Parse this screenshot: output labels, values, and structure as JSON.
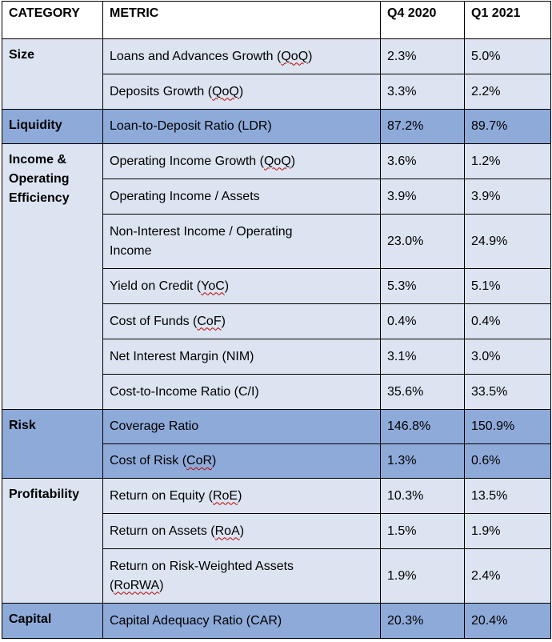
{
  "headers": {
    "category": "CATEGORY",
    "metric": "METRIC",
    "q4": "Q4 2020",
    "q1": "Q1 2021"
  },
  "categories": {
    "size": "Size",
    "liquidity": "Liquidity",
    "income_line1": "Income &",
    "income_line2": "Operating",
    "income_line3": "Efficiency",
    "risk": "Risk",
    "profitability": "Profitability",
    "capital": "Capital"
  },
  "rows": [
    {
      "metric_pre": "Loans and Advances Growth (",
      "metric_abbr": "QoQ",
      "metric_post": ")",
      "q4": "2.3%",
      "q1": "5.0%"
    },
    {
      "metric_pre": "Deposits Growth (",
      "metric_abbr": "QoQ",
      "metric_post": ")",
      "q4": "3.3%",
      "q1": "2.2%"
    },
    {
      "metric": "Loan-to-Deposit Ratio (LDR)",
      "q4": "87.2%",
      "q1": "89.7%"
    },
    {
      "metric_pre": "Operating Income Growth (",
      "metric_abbr": "QoQ",
      "metric_post": ")",
      "q4": "3.6%",
      "q1": "1.2%"
    },
    {
      "metric": "Operating Income / Assets",
      "q4": "3.9%",
      "q1": "3.9%"
    },
    {
      "metric_line1": "Non-Interest Income / Operating",
      "metric_line2": "Income",
      "q4": "23.0%",
      "q1": "24.9%"
    },
    {
      "metric_pre": "Yield on Credit (",
      "metric_abbr": "YoC",
      "metric_post": ")",
      "q4": "5.3%",
      "q1": "5.1%"
    },
    {
      "metric_pre": "Cost of Funds (",
      "metric_abbr": "CoF",
      "metric_post": ")",
      "q4": "0.4%",
      "q1": "0.4%"
    },
    {
      "metric": "Net Interest Margin (NIM)",
      "q4": "3.1%",
      "q1": "3.0%"
    },
    {
      "metric": "Cost-to-Income Ratio (C/I)",
      "q4": "35.6%",
      "q1": "33.5%"
    },
    {
      "metric": "Coverage Ratio",
      "q4": "146.8%",
      "q1": "150.9%"
    },
    {
      "metric_pre": "Cost of Risk (",
      "metric_abbr": "CoR",
      "metric_post": ")",
      "q4": "1.3%",
      "q1": "0.6%"
    },
    {
      "metric_pre": "Return on Equity (",
      "metric_abbr": "RoE",
      "metric_post": ")",
      "q4": "10.3%",
      "q1": "13.5%"
    },
    {
      "metric_pre": "Return on Assets (",
      "metric_abbr": "RoA",
      "metric_post": ")",
      "q4": "1.5%",
      "q1": "1.9%"
    },
    {
      "metric_line1": "Return on Risk-Weighted Assets",
      "metric_line2_pre": "(",
      "metric_line2_abbr": "RoRWA",
      "metric_line2_post": ")",
      "q4": "1.9%",
      "q1": "2.4%"
    },
    {
      "metric": "Capital Adequacy Ratio (CAR)",
      "q4": "20.3%",
      "q1": "20.4%"
    }
  ],
  "colors": {
    "light_band": "#dce4f1",
    "dark_band": "#8eaad9",
    "spell_underline": "#c00000"
  }
}
